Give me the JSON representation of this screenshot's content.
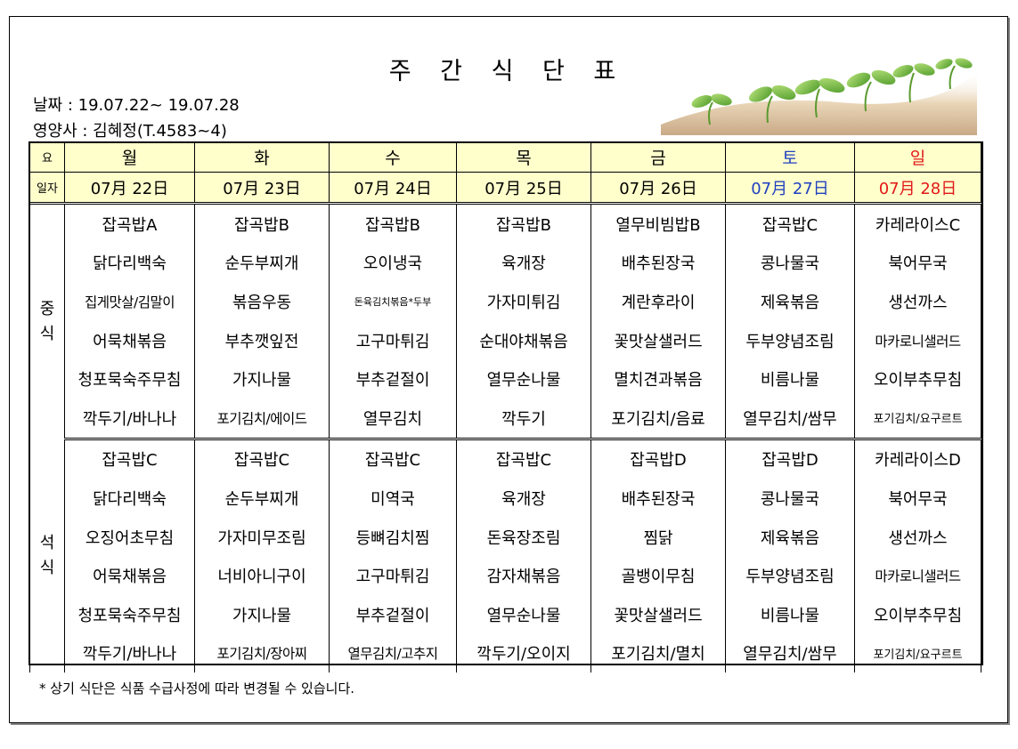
{
  "title": "주 간 식 단 표",
  "date_line": "날짜 : 19.07.22~ 19.07.28",
  "nutritionist_line": "영양사 : 김혜정(T.4583~4)",
  "header": {
    "day_label": "요",
    "date_label": "일자",
    "days": [
      "월",
      "화",
      "수",
      "목",
      "금",
      "토",
      "일"
    ],
    "dates": [
      "07月 22日",
      "07月 23日",
      "07月 24日",
      "07月 25日",
      "07月 26日",
      "07月 27日",
      "07月 28日"
    ],
    "colors": {
      "saturday": "#1f3fbf",
      "sunday": "#e01818",
      "header_bg": "#ffffcc"
    }
  },
  "lunch": {
    "label_1": "중",
    "label_2": "식",
    "rows": [
      [
        "잡곡밥A",
        "잡곡밥B",
        "잡곡밥B",
        "잡곡밥B",
        "열무비빔밥B",
        "잡곡밥C",
        "카레라이스C"
      ],
      [
        "닭다리백숙",
        "순두부찌개",
        "오이냉국",
        "육개장",
        "배추된장국",
        "콩나물국",
        "북어무국"
      ],
      [
        "집게맛살/김말이",
        "볶음우동",
        "돈육김치볶음*두부",
        "가자미튀김",
        "계란후라이",
        "제육볶음",
        "생선까스"
      ],
      [
        "어묵채볶음",
        "부추깻잎전",
        "고구마튀김",
        "순대야채볶음",
        "꽃맛살샐러드",
        "두부양념조림",
        "마카로니샐러드"
      ],
      [
        "청포묵숙주무침",
        "가지나물",
        "부추겉절이",
        "열무순나물",
        "멸치견과볶음",
        "비름나물",
        "오이부추무침"
      ],
      [
        "깍두기/바나나",
        "포기김치/에이드",
        "열무김치",
        "깍두기",
        "포기김치/음료",
        "열무김치/쌈무",
        "포기김치/요구르트"
      ]
    ]
  },
  "dinner": {
    "label_1": "석",
    "label_2": "식",
    "rows": [
      [
        "잡곡밥C",
        "잡곡밥C",
        "잡곡밥C",
        "잡곡밥C",
        "잡곡밥D",
        "잡곡밥D",
        "카레라이스D"
      ],
      [
        "닭다리백숙",
        "순두부찌개",
        "미역국",
        "육개장",
        "배추된장국",
        "콩나물국",
        "북어무국"
      ],
      [
        "오징어초무침",
        "가자미무조림",
        "등뼈김치찜",
        "돈육장조림",
        "찜닭",
        "제육볶음",
        "생선까스"
      ],
      [
        "어묵채볶음",
        "너비아니구이",
        "고구마튀김",
        "감자채볶음",
        "골뱅이무침",
        "두부양념조림",
        "마카로니샐러드"
      ],
      [
        "청포묵숙주무침",
        "가지나물",
        "부추겉절이",
        "열무순나물",
        "꽃맛살샐러드",
        "비름나물",
        "오이부추무침"
      ],
      [
        "깍두기/바나나",
        "포기김치/장아찌",
        "열무김치/고추지",
        "깍두기/오이지",
        "포기김치/멸치",
        "열무김치/쌈무",
        "포기김치/요구르트"
      ]
    ]
  },
  "footnote": "* 상기 식단은 식품 수급사정에 따라 변경될 수 있습니다."
}
